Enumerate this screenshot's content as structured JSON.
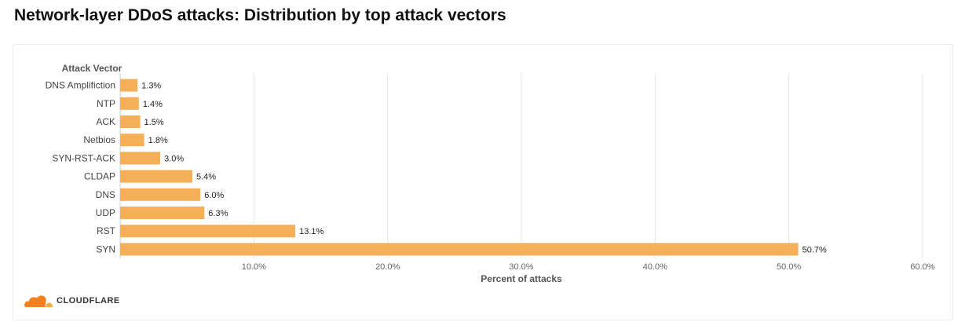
{
  "page": {
    "title": "Network-layer DDoS attacks: Distribution by top attack vectors"
  },
  "brand": {
    "name": "CLOUDFLARE",
    "logo_icon": "cloud-icon",
    "color_orange": "#F38020",
    "color_light_orange": "#FBAD41"
  },
  "chart_data": {
    "type": "bar",
    "orientation": "horizontal",
    "ylabel": "Attack Vector",
    "xlabel": "Percent of attacks",
    "categories": [
      "DNS Amplifiction",
      "NTP",
      "ACK",
      "Netbios",
      "SYN-RST-ACK",
      "CLDAP",
      "DNS",
      "UDP",
      "RST",
      "SYN"
    ],
    "values": [
      1.3,
      1.4,
      1.5,
      1.8,
      3.0,
      5.4,
      6.0,
      6.3,
      13.1,
      50.7
    ],
    "value_labels": [
      "1.3%",
      "1.4%",
      "1.5%",
      "1.8%",
      "3.0%",
      "5.4%",
      "6.0%",
      "6.3%",
      "13.1%",
      "50.7%"
    ],
    "xlim": [
      0,
      60
    ],
    "xticks": [
      10,
      20,
      30,
      40,
      50,
      60
    ],
    "xtick_labels": [
      "10.0%",
      "20.0%",
      "30.0%",
      "40.0%",
      "50.0%",
      "60.0%"
    ],
    "grid": true,
    "bar_color": "#F4AF57",
    "grid_color": "#E6E6E6"
  }
}
